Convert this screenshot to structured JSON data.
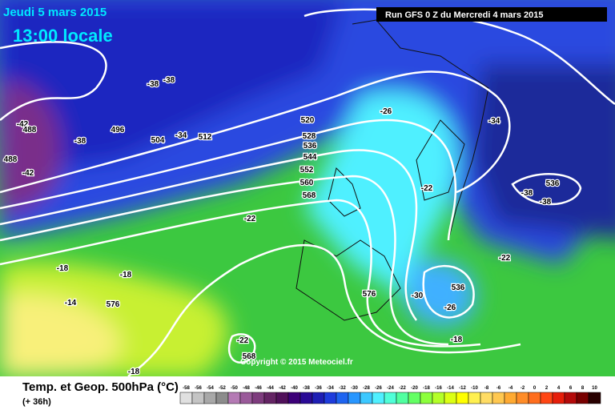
{
  "header": {
    "date": "Jeudi 5 mars 2015",
    "time": "13:00 locale",
    "run": "Run GFS 0 Z du Mercredi 4 mars 2015"
  },
  "footer": {
    "title": "Temp. et Geop. 500hPa (°C)",
    "lead": "(+ 36h)",
    "copyright": "Copyright © 2015 Meteociel.fr"
  },
  "map_labels": [
    "-38",
    "-38",
    "-42",
    "488",
    "496",
    "-38",
    "504",
    "-34",
    "512",
    "488",
    "-42",
    "520",
    "528",
    "536",
    "544",
    "552",
    "560",
    "568",
    "-26",
    "-34",
    "-22",
    "536",
    "-38",
    "-38",
    "-22",
    "-22",
    "-18",
    "-18",
    "-14",
    "576",
    "576",
    "536",
    "-30",
    "-26",
    "-18",
    "-22",
    "568",
    "-18"
  ],
  "colorbar": {
    "values": [
      -58,
      -56,
      -54,
      -52,
      -50,
      -48,
      -46,
      -44,
      -42,
      -40,
      -38,
      -36,
      -34,
      -32,
      -30,
      -28,
      -26,
      -24,
      -22,
      -20,
      -18,
      -16,
      -14,
      -12,
      -10,
      -8,
      -6,
      -4,
      -2,
      0,
      2,
      4,
      6,
      8,
      10
    ],
    "colors": [
      "#e0e0e0",
      "#c4c4c4",
      "#a8a8a8",
      "#8c8c8c",
      "#b47ab4",
      "#9a5a9a",
      "#7e3c7e",
      "#642464",
      "#50105a",
      "#3c0078",
      "#2a0a96",
      "#1e1eb4",
      "#1e3cdc",
      "#1e64f0",
      "#2896ff",
      "#3cc8ff",
      "#50f0ff",
      "#50ffd8",
      "#50ffa0",
      "#64ff64",
      "#8cff3c",
      "#b4ff28",
      "#dcff14",
      "#ffff00",
      "#fff050",
      "#ffdc64",
      "#ffc850",
      "#ffaa32",
      "#ff8c28",
      "#ff6e1e",
      "#ff4614",
      "#e61e0a",
      "#b40a0a",
      "#780000",
      "#280000"
    ]
  }
}
